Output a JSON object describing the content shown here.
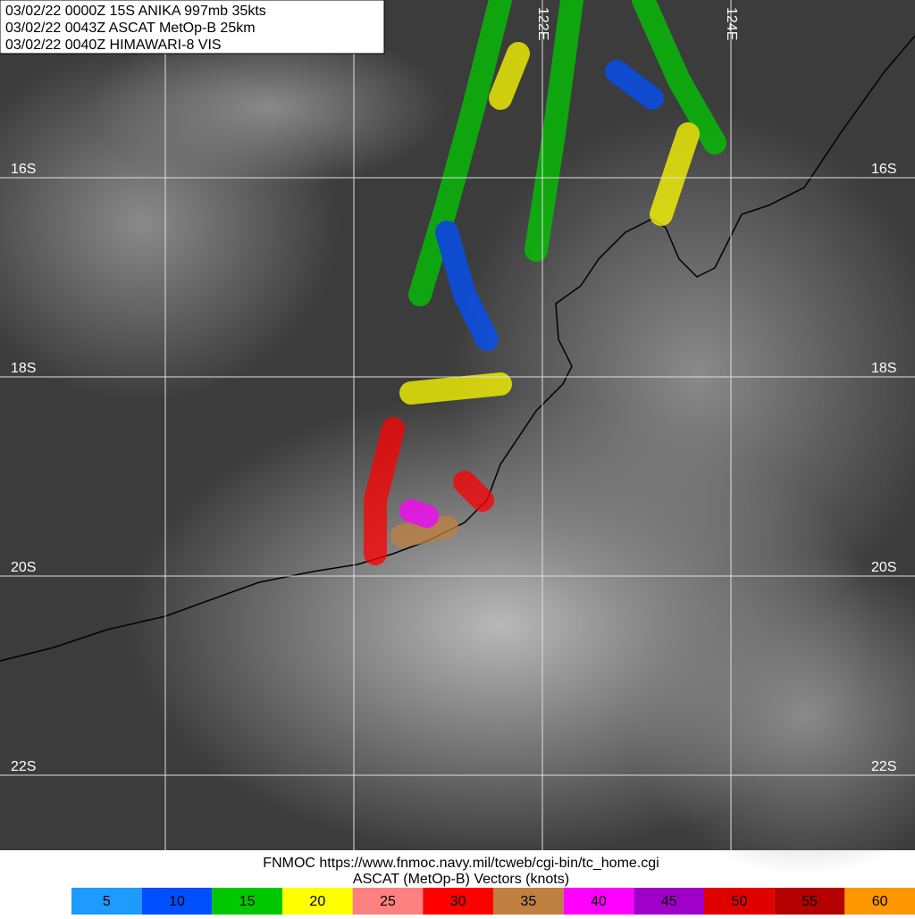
{
  "header": {
    "lines": [
      "03/02/22 0000Z  15S ANIKA 997mb 35kts",
      "03/02/22 0043Z  ASCAT MetOp-B 25km",
      "03/02/22 0040Z  HIMAWARI-8 VIS"
    ]
  },
  "grid": {
    "lat_labels": [
      "16S",
      "18S",
      "20S",
      "22S"
    ],
    "lon_labels": [
      "122E",
      "124E"
    ]
  },
  "footer": {
    "source": "FNMOC https://www.fnmoc.navy.mil/tcweb/cgi-bin/tc_home.cgi",
    "legend_title": "ASCAT (MetOp-B) Vectors (knots)"
  },
  "legend": {
    "items": [
      {
        "label": 5,
        "color": "#1e9bff"
      },
      {
        "label": 10,
        "color": "#0050ff"
      },
      {
        "label": 15,
        "color": "#00c800"
      },
      {
        "label": 20,
        "color": "#ffff00"
      },
      {
        "label": 25,
        "color": "#ff8080"
      },
      {
        "label": 30,
        "color": "#ff0000"
      },
      {
        "label": 35,
        "color": "#c08040"
      },
      {
        "label": 40,
        "color": "#ff00ff"
      },
      {
        "label": 45,
        "color": "#a000c8"
      },
      {
        "label": 50,
        "color": "#e00000"
      },
      {
        "label": 55,
        "color": "#b40000"
      },
      {
        "label": 60,
        "color": "#ff9600"
      }
    ]
  }
}
